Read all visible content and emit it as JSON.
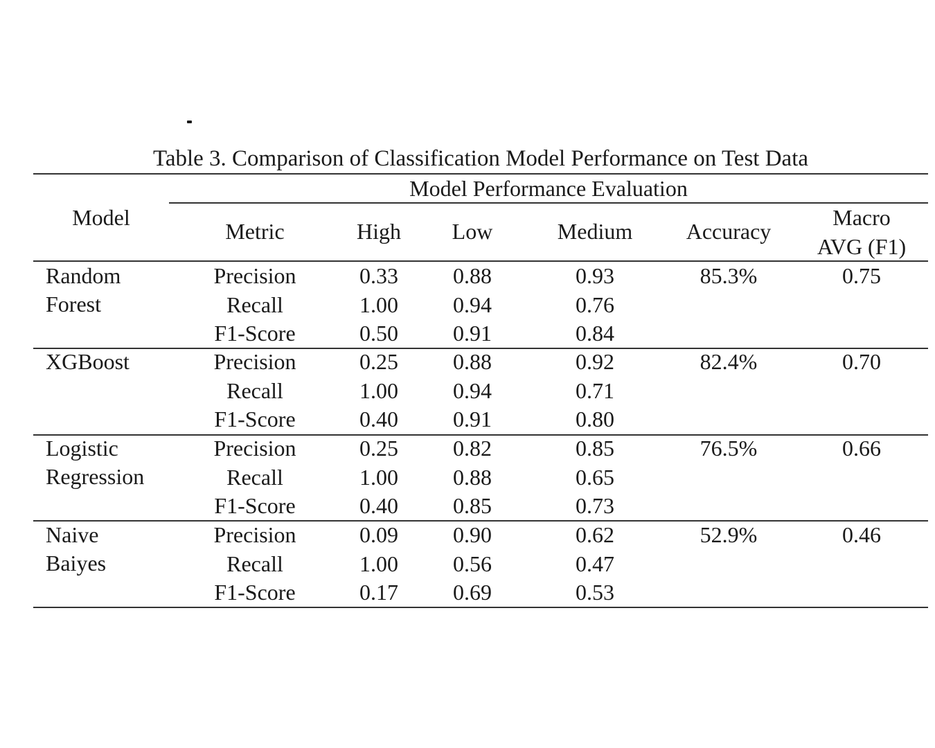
{
  "caption": "Table 3. Comparison of Classification Model Performance on Test Data",
  "header": {
    "model": "Model",
    "group": "Model Performance Evaluation",
    "metric": "Metric",
    "high": "High",
    "low": "Low",
    "medium": "Medium",
    "accuracy": "Accuracy",
    "macro_line1": "Macro",
    "macro_line2": "AVG (F1)"
  },
  "models": [
    {
      "name_line1": "Random",
      "name_line2": "Forest",
      "accuracy": "85.3%",
      "macro": "0.75",
      "rows": [
        {
          "metric": "Precision",
          "high": "0.33",
          "low": "0.88",
          "medium": "0.93"
        },
        {
          "metric": "Recall",
          "high": "1.00",
          "low": "0.94",
          "medium": "0.76"
        },
        {
          "metric": "F1-Score",
          "high": "0.50",
          "low": "0.91",
          "medium": "0.84"
        }
      ]
    },
    {
      "name_line1": "XGBoost",
      "name_line2": "",
      "accuracy": "82.4%",
      "macro": "0.70",
      "rows": [
        {
          "metric": "Precision",
          "high": "0.25",
          "low": "0.88",
          "medium": "0.92"
        },
        {
          "metric": "Recall",
          "high": "1.00",
          "low": "0.94",
          "medium": "0.71"
        },
        {
          "metric": "F1-Score",
          "high": "0.40",
          "low": "0.91",
          "medium": "0.80"
        }
      ]
    },
    {
      "name_line1": "Logistic",
      "name_line2": "Regression",
      "accuracy": "76.5%",
      "macro": "0.66",
      "rows": [
        {
          "metric": "Precision",
          "high": "0.25",
          "low": "0.82",
          "medium": "0.85"
        },
        {
          "metric": "Recall",
          "high": "1.00",
          "low": "0.88",
          "medium": "0.65"
        },
        {
          "metric": "F1-Score",
          "high": "0.40",
          "low": "0.85",
          "medium": "0.73"
        }
      ]
    },
    {
      "name_line1": "Naive",
      "name_line2": "Baiyes",
      "accuracy": "52.9%",
      "macro": "0.46",
      "rows": [
        {
          "metric": "Precision",
          "high": "0.09",
          "low": "0.90",
          "medium": "0.62"
        },
        {
          "metric": "Recall",
          "high": "1.00",
          "low": "0.56",
          "medium": "0.47"
        },
        {
          "metric": "F1-Score",
          "high": "0.17",
          "low": "0.69",
          "medium": "0.53"
        }
      ]
    }
  ]
}
